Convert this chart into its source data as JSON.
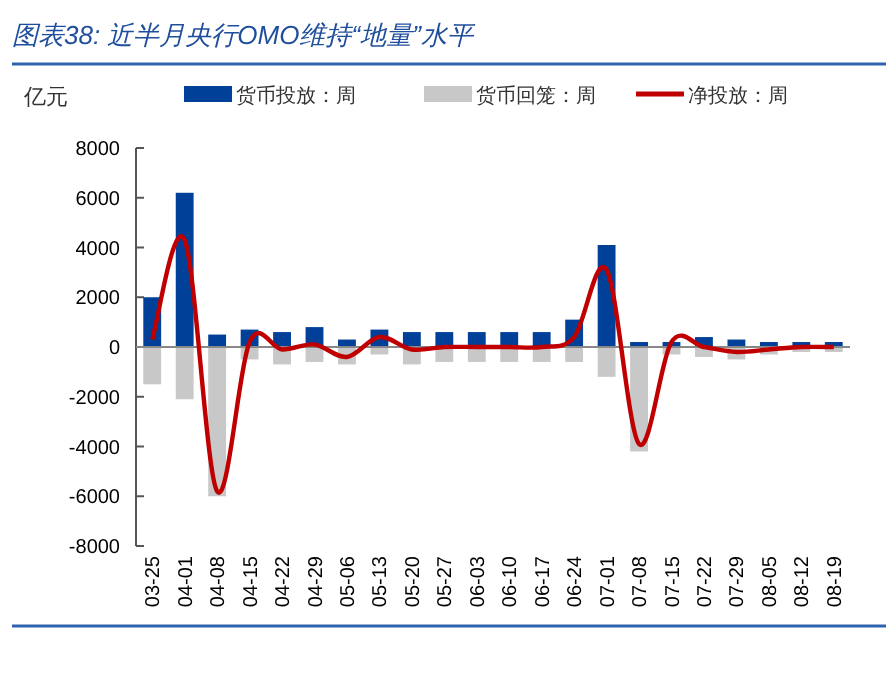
{
  "chart_data": {
    "type": "bar",
    "title": "图表38: 近半月央行OMO维持“地量”水平",
    "ylabel": "亿元",
    "categories": [
      "03-25",
      "04-01",
      "04-08",
      "04-15",
      "04-22",
      "04-29",
      "05-06",
      "05-13",
      "05-20",
      "05-27",
      "06-03",
      "06-10",
      "06-17",
      "06-24",
      "07-01",
      "07-08",
      "07-15",
      "07-22",
      "07-29",
      "08-05",
      "08-12",
      "08-19"
    ],
    "series": [
      {
        "name": "货币投放：周",
        "color": "#004098",
        "values": [
          2000,
          6200,
          500,
          700,
          600,
          800,
          300,
          700,
          600,
          600,
          600,
          600,
          600,
          1100,
          4100,
          200,
          200,
          400,
          300,
          200,
          200,
          200
        ]
      },
      {
        "name": "货币回笼：周",
        "color": "#c8c8c8",
        "values": [
          -1500,
          -2100,
          -6000,
          -500,
          -700,
          -600,
          -700,
          -300,
          -700,
          -600,
          -600,
          -600,
          -600,
          -600,
          -1200,
          -4200,
          -300,
          -400,
          -500,
          -300,
          -200,
          -200
        ]
      },
      {
        "name": "净投放：周",
        "color": "#c00000",
        "type": "line",
        "values": [
          300,
          4300,
          -5800,
          200,
          -100,
          100,
          -400,
          400,
          -100,
          0,
          0,
          0,
          0,
          400,
          3100,
          -3900,
          200,
          0,
          -200,
          -100,
          0,
          0
        ]
      }
    ],
    "ylim": [
      -8000,
      8000
    ],
    "yticks": [
      -8000,
      -6000,
      -4000,
      -2000,
      0,
      2000,
      4000,
      6000,
      8000
    ],
    "legend": "top",
    "stacked": true
  }
}
